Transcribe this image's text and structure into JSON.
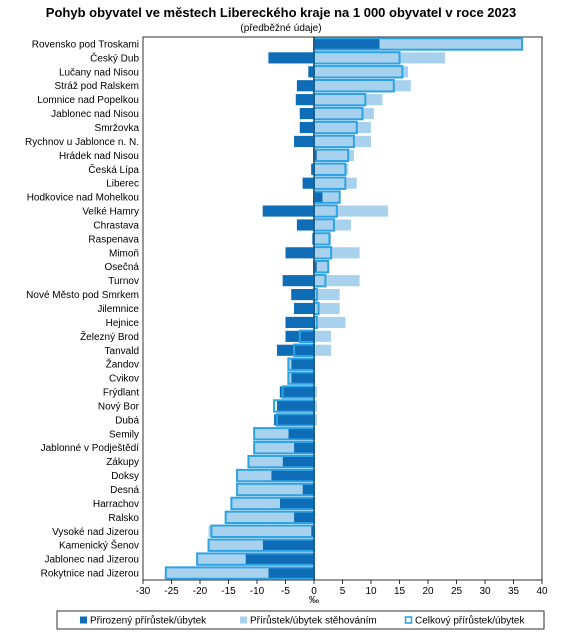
{
  "chart_data": {
    "type": "bar",
    "title": "Pohyb obyvatel ve městech Libereckého kraje na 1 000 obyvatel v roce 2023",
    "subtitle": "(předběžné údaje)",
    "xlabel": "‰",
    "xlim": [
      -30,
      40
    ],
    "xticks": [
      -30,
      -25,
      -20,
      -15,
      -10,
      -5,
      0,
      5,
      10,
      15,
      20,
      25,
      30,
      35,
      40
    ],
    "grid": false,
    "legend_position": "bottom",
    "colors": {
      "natural": "#0f6db7",
      "migration": "#a8d1ee",
      "total": "#2ea3e3"
    },
    "categories": [
      "Rovensko pod Troskami",
      "Český Dub",
      "Lučany nad Nisou",
      "Stráž pod Ralskem",
      "Lomnice nad Popelkou",
      "Jablonec nad Nisou",
      "Smržovka",
      "Rychnov u Jablonce n. N.",
      "Hrádek nad Nisou",
      "Česká Lípa",
      "Liberec",
      "Hodkovice nad Mohelkou",
      "Velké Hamry",
      "Chrastava",
      "Raspenava",
      "Mimoň",
      "Osečná",
      "Turnov",
      "Nové Město pod Smrkem",
      "Jilemnice",
      "Hejnice",
      "Železný Brod",
      "Tanvald",
      "Žandov",
      "Cvikov",
      "Frýdlant",
      "Nový Bor",
      "Dubá",
      "Semily",
      "Jablonné v Podještědí",
      "Zákupy",
      "Doksy",
      "Desná",
      "Harrachov",
      "Ralsko",
      "Vysoké nad Jizerou",
      "Kamenický Šenov",
      "Jablonec nad Jizerou",
      "Rokytnice nad Jizerou"
    ],
    "series": [
      {
        "name": "Přirozený přírůstek/úbytek",
        "values": [
          11.5,
          -8.0,
          -1.0,
          -3.0,
          -3.2,
          -2.5,
          -2.5,
          -3.5,
          0.5,
          -0.5,
          -2.0,
          1.5,
          -9.0,
          -3.0,
          -0.3,
          -5.0,
          0.5,
          -5.5,
          -4.0,
          -3.5,
          -5.0,
          -5.0,
          -6.5,
          -4.0,
          -4.0,
          -6.0,
          -6.5,
          -7.0,
          -4.5,
          -3.5,
          -5.5,
          -7.5,
          -2.0,
          -6.0,
          -3.5,
          -0.5,
          -9.0,
          -12.0,
          -8.0
        ]
      },
      {
        "name": "Přírůstek/úbytek stěhováním",
        "values": [
          25.0,
          23.0,
          16.5,
          17.0,
          12.0,
          10.5,
          10.0,
          10.0,
          6.5,
          6.0,
          7.5,
          3.0,
          13.0,
          6.5,
          3.0,
          8.0,
          2.0,
          8.0,
          4.5,
          4.5,
          5.5,
          3.0,
          3.0,
          -0.5,
          -0.5,
          0.5,
          0.5,
          0.5,
          -6.0,
          -7.0,
          -6.0,
          -6.0,
          -11.5,
          -8.5,
          -12.0,
          -18.0,
          -9.5,
          -8.5,
          -18.0
        ]
      },
      {
        "name": "Celkový přírůstek/úbytek",
        "values": [
          36.5,
          15.0,
          15.5,
          14.0,
          9.0,
          8.5,
          7.5,
          7.0,
          6.0,
          5.5,
          5.5,
          4.5,
          4.0,
          3.5,
          2.7,
          3.0,
          2.5,
          2.0,
          0.5,
          0.8,
          0.5,
          -2.5,
          -3.5,
          -4.5,
          -4.5,
          -5.5,
          -7.0,
          -6.5,
          -10.5,
          -10.5,
          -11.5,
          -13.5,
          -13.5,
          -14.5,
          -15.5,
          -18.0,
          -18.5,
          -20.5,
          -26.0
        ]
      }
    ]
  }
}
